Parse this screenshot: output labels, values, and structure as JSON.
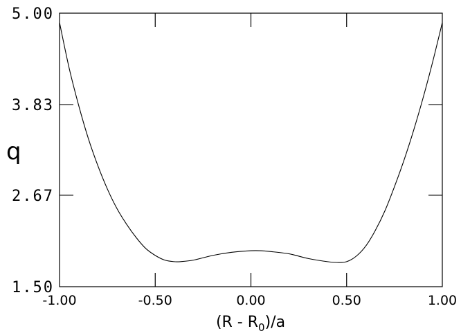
{
  "chart_data": {
    "type": "line",
    "title": "",
    "xlabel": "(R - R₀)/a",
    "xlabel_main": "(R - R",
    "xlabel_sub": "0",
    "xlabel_tail": ")/a",
    "ylabel": "q",
    "xlim": [
      -1.0,
      1.0
    ],
    "ylim": [
      1.5,
      5.0
    ],
    "x_ticks": [
      -1.0,
      -0.5,
      0.0,
      0.5,
      1.0
    ],
    "x_tick_labels": [
      "-1.00",
      "-0.50",
      "0.00",
      "0.50",
      "1.00"
    ],
    "y_ticks": [
      1.5,
      2.67,
      3.83,
      5.0
    ],
    "y_tick_labels": [
      "1.50",
      "2.67",
      "3.83",
      "5.00"
    ],
    "grid": false,
    "legend": "none",
    "line_color": "#000000",
    "series": [
      {
        "x": [
          -1.0,
          -0.95,
          -0.9,
          -0.85,
          -0.8,
          -0.75,
          -0.7,
          -0.65,
          -0.6,
          -0.55,
          -0.5,
          -0.45,
          -0.4,
          -0.37,
          -0.3,
          -0.2,
          -0.1,
          0.0,
          0.05,
          0.1,
          0.2,
          0.3,
          0.4,
          0.45,
          0.5,
          0.55,
          0.6,
          0.65,
          0.7,
          0.75,
          0.8,
          0.85,
          0.9,
          0.95,
          1.0
        ],
        "y": [
          4.88,
          4.3,
          3.82,
          3.4,
          3.05,
          2.75,
          2.5,
          2.3,
          2.13,
          1.99,
          1.9,
          1.84,
          1.82,
          1.82,
          1.84,
          1.9,
          1.94,
          1.96,
          1.96,
          1.95,
          1.92,
          1.86,
          1.82,
          1.81,
          1.82,
          1.89,
          2.02,
          2.22,
          2.47,
          2.78,
          3.12,
          3.5,
          3.92,
          4.38,
          4.88
        ]
      }
    ]
  }
}
